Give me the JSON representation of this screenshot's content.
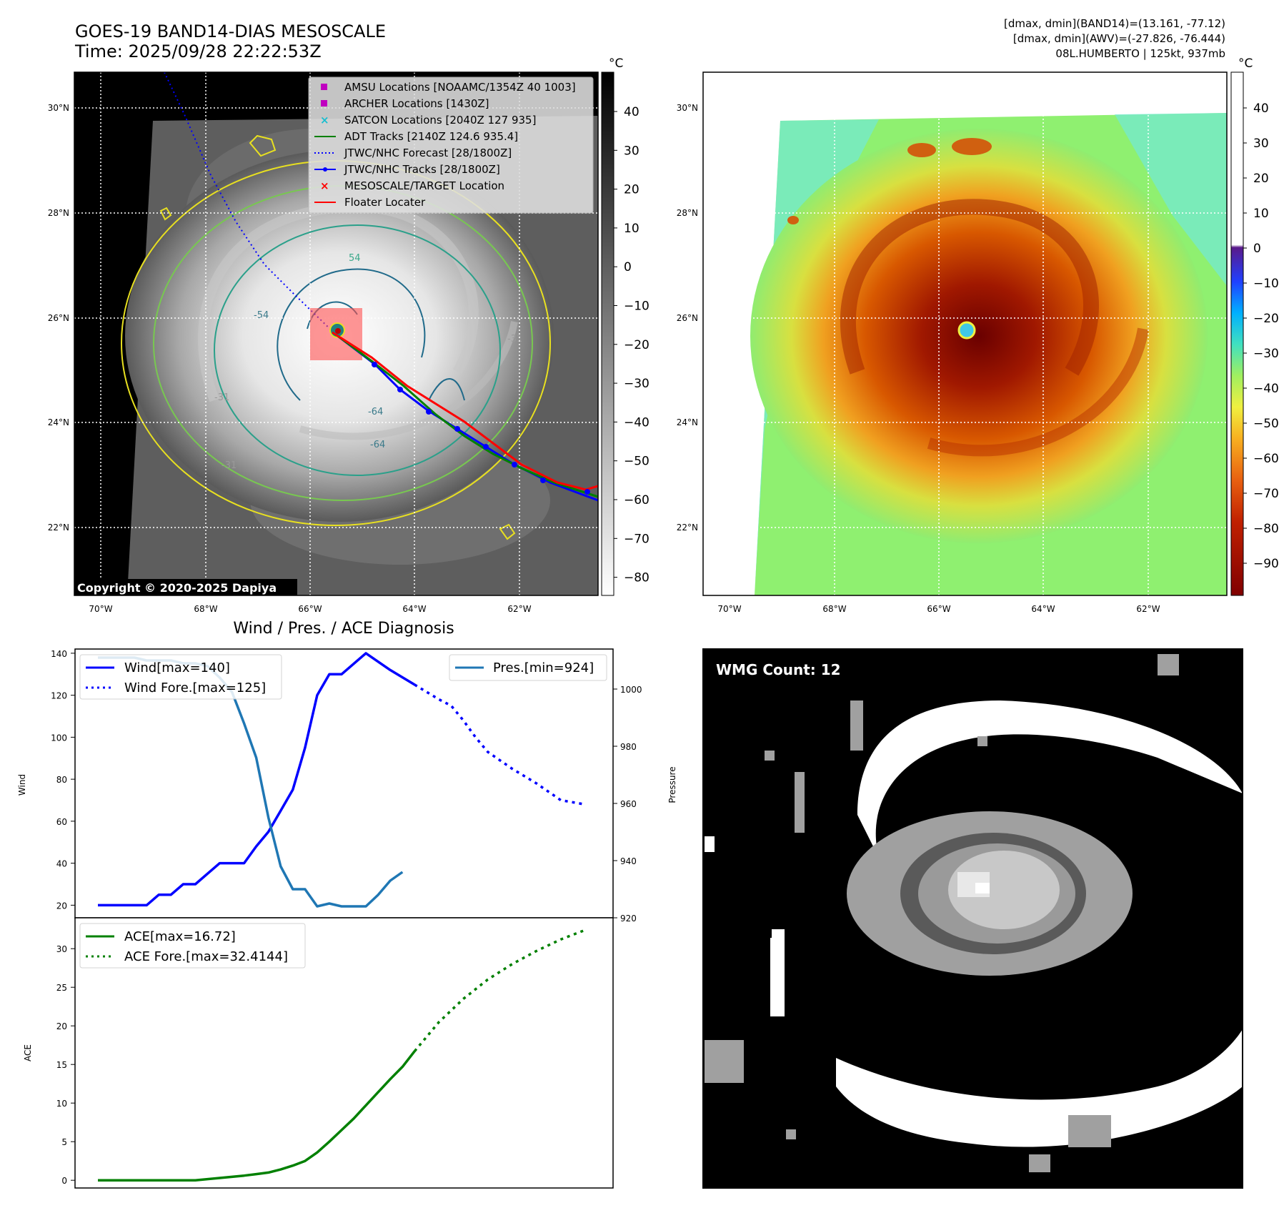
{
  "header": {
    "title_line1": "GOES-19 BAND14-DIAS MESOSCALE",
    "title_line2": "Time: 2025/09/28 22:22:53Z",
    "info_line1": "[dmax, dmin](BAND14)=(13.161, -77.12)",
    "info_line2": "[dmax, dmin](AWV)=(-27.826, -76.444)",
    "info_line3": "08L.HUMBERTO | 125kt, 937mb"
  },
  "map_axes": {
    "lon_labels": [
      "70°W",
      "68°W",
      "66°W",
      "64°W",
      "62°W"
    ],
    "lat_labels": [
      "30°N",
      "28°N",
      "26°N",
      "24°N",
      "22°N"
    ],
    "unit": "°C"
  },
  "left_map": {
    "copyright": "Copyright © 2020-2025 Dapiya",
    "contour_labels": [
      "54",
      "-54",
      "-64",
      "-64",
      "-31",
      "-31",
      "-31"
    ],
    "legend": [
      {
        "label": "AMSU Locations [NOAAMC/1354Z 40 1003]",
        "color": "#c000c0",
        "marker": "square"
      },
      {
        "label": "ARCHER Locations [1430Z]",
        "color": "#c000c0",
        "marker": "square"
      },
      {
        "label": "SATCON Locations [2040Z 127 935]",
        "color": "#17becf",
        "marker": "x"
      },
      {
        "label": "ADT Tracks [2140Z 124.6 935.4]",
        "color": "#008000",
        "marker": "line"
      },
      {
        "label": "JTWC/NHC Forecast [28/1800Z]",
        "color": "#0000ff",
        "marker": "dotted"
      },
      {
        "label": "JTWC/NHC Tracks [28/1800Z]",
        "color": "#0000ff",
        "marker": "line-dot"
      },
      {
        "label": "MESOSCALE/TARGET Location",
        "color": "#ff0000",
        "marker": "x"
      },
      {
        "label": "Floater Locater",
        "color": "#ff0000",
        "marker": "line"
      }
    ],
    "colorbar_ticks": [
      "40",
      "30",
      "20",
      "10",
      "0",
      "−10",
      "−20",
      "−30",
      "−40",
      "−50",
      "−60",
      "−70",
      "−80"
    ]
  },
  "right_map": {
    "colorbar_ticks": [
      "40",
      "30",
      "20",
      "10",
      "0",
      "−10",
      "−20",
      "−30",
      "−40",
      "−50",
      "−60",
      "−70",
      "−80",
      "−90"
    ]
  },
  "wmg_panel": {
    "label": "WMG Count: 12"
  },
  "chart_data": [
    {
      "type": "line",
      "title": "Wind / Pres. / ACE Diagnosis",
      "ylabel": "Wind",
      "ylabel_right": "Pressure",
      "x": [
        0,
        1,
        2,
        3,
        4,
        5,
        6,
        7,
        8,
        9,
        10,
        11,
        12,
        13,
        14,
        15,
        16,
        17,
        18,
        19,
        20,
        21,
        22,
        23,
        24,
        25,
        26,
        27,
        28,
        29,
        30,
        31,
        32,
        33,
        34,
        35,
        36,
        37,
        38,
        39,
        40
      ],
      "ylim": [
        14,
        142
      ],
      "y2lim": [
        920,
        1014
      ],
      "yticks": [
        20,
        40,
        60,
        80,
        100,
        120,
        140
      ],
      "y2ticks": [
        920,
        940,
        960,
        980,
        1000
      ],
      "series": [
        {
          "name": "Wind[max=140]",
          "color": "#0000ff",
          "style": "solid",
          "axis": "left",
          "x": [
            0,
            4,
            5,
            6,
            7,
            8,
            9,
            10,
            11,
            12,
            13,
            14,
            15,
            16,
            17,
            18,
            19,
            20,
            21,
            22,
            24,
            26
          ],
          "values": [
            20,
            20,
            25,
            25,
            30,
            30,
            35,
            40,
            40,
            40,
            48,
            55,
            65,
            75,
            95,
            120,
            130,
            130,
            135,
            140,
            132,
            125
          ]
        },
        {
          "name": "Wind Fore.[max=125]",
          "color": "#0000ff",
          "style": "dotted",
          "axis": "left",
          "x": [
            26,
            28,
            29,
            30,
            31,
            32,
            34,
            36,
            38,
            40
          ],
          "values": [
            125,
            118,
            115,
            108,
            100,
            93,
            85,
            78,
            70,
            68
          ]
        },
        {
          "name": "Pres.[min=924]",
          "color": "#1f77b4",
          "style": "solid",
          "axis": "right",
          "x": [
            0,
            1,
            2,
            3,
            4,
            5,
            6,
            7,
            8,
            9,
            10,
            11,
            12,
            13,
            14,
            15,
            16,
            17,
            18,
            19,
            20,
            21,
            22,
            23,
            24,
            25
          ],
          "values": [
            1011,
            1011,
            1011,
            1011,
            1010,
            1010,
            1010,
            1009,
            1009,
            1008,
            1004,
            999,
            988,
            976,
            955,
            938,
            930,
            930,
            924,
            925,
            924,
            924,
            924,
            928,
            933,
            936
          ]
        }
      ]
    },
    {
      "type": "line",
      "ylabel": "ACE",
      "ylim": [
        -1,
        34
      ],
      "yticks": [
        0,
        5,
        10,
        15,
        20,
        25,
        30
      ],
      "series": [
        {
          "name": "ACE[max=16.72]",
          "color": "#008000",
          "style": "solid",
          "x": [
            0,
            8,
            10,
            12,
            13,
            14,
            15,
            16,
            17,
            18,
            19,
            20,
            21,
            22,
            23,
            24,
            25,
            26
          ],
          "values": [
            0,
            0,
            0.3,
            0.6,
            0.8,
            1.0,
            1.4,
            1.9,
            2.5,
            3.6,
            5.0,
            6.5,
            8.0,
            9.7,
            11.4,
            13.1,
            14.7,
            16.72
          ]
        },
        {
          "name": "ACE Fore.[max=32.4144]",
          "color": "#008000",
          "style": "dotted",
          "x": [
            26,
            28,
            30,
            32,
            34,
            36,
            38,
            40
          ],
          "values": [
            16.72,
            20.5,
            23.5,
            26.0,
            28.0,
            29.7,
            31.2,
            32.4144
          ]
        }
      ]
    }
  ]
}
